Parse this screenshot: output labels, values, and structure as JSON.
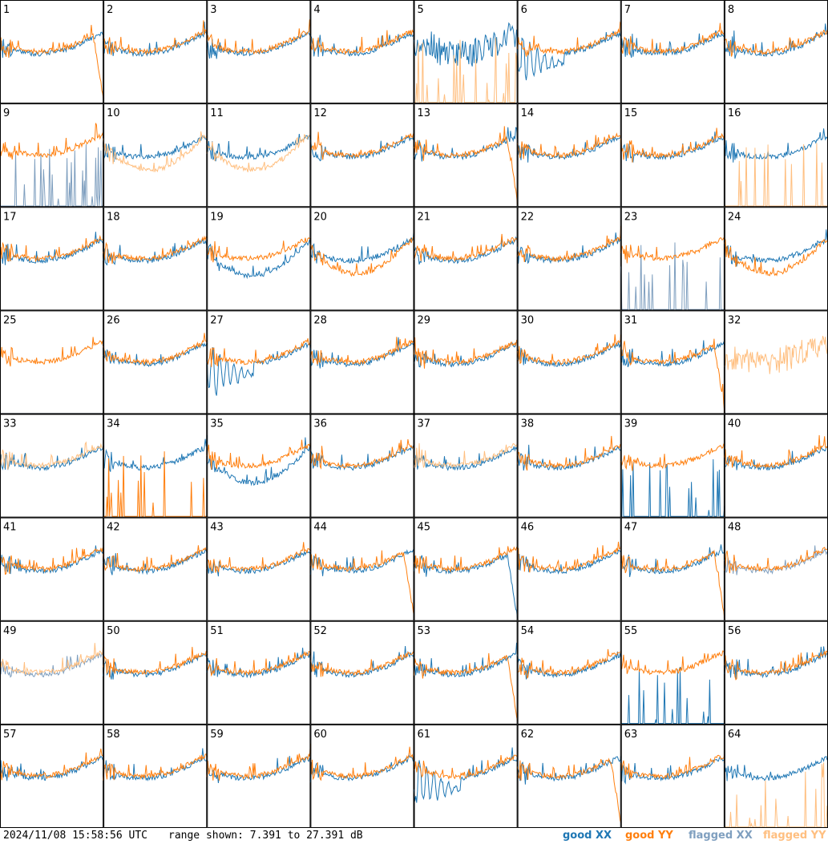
{
  "colors": {
    "good_xx": "#1f77b4",
    "good_yy": "#ff7f0e",
    "flagged_xx": "#7f9fbf",
    "flagged_yy": "#ffbf80",
    "border": "#000000"
  },
  "chart_data": {
    "type": "line",
    "layout": "small-multiples",
    "panel_count": 64,
    "grid": "8x8",
    "panel_labels": [
      "1",
      "2",
      "3",
      "4",
      "5",
      "6",
      "7",
      "8",
      "9",
      "10",
      "11",
      "12",
      "13",
      "14",
      "15",
      "16",
      "17",
      "18",
      "19",
      "20",
      "21",
      "22",
      "23",
      "24",
      "25",
      "26",
      "27",
      "28",
      "29",
      "30",
      "31",
      "32",
      "33",
      "34",
      "35",
      "36",
      "37",
      "38",
      "39",
      "40",
      "41",
      "42",
      "43",
      "44",
      "45",
      "46",
      "47",
      "48",
      "49",
      "50",
      "51",
      "52",
      "53",
      "54",
      "55",
      "56",
      "57",
      "58",
      "59",
      "60",
      "61",
      "62",
      "63",
      "64"
    ],
    "y_range_db": [
      7.391,
      27.391
    ],
    "series_names": [
      "good XX",
      "good YY",
      "flagged XX",
      "flagged YY"
    ],
    "panels": [
      {
        "id": 1,
        "xx": "good",
        "yy": "good",
        "shape": {
          "xx": "normal",
          "yy": "dropoff"
        }
      },
      {
        "id": 2,
        "xx": "good",
        "yy": "good",
        "shape": {
          "xx": "normal",
          "yy": "normal"
        }
      },
      {
        "id": 3,
        "xx": "good",
        "yy": "good",
        "shape": {
          "xx": "normal",
          "yy": "normal"
        }
      },
      {
        "id": 4,
        "xx": "good",
        "yy": "good",
        "shape": {
          "xx": "normal",
          "yy": "normal"
        }
      },
      {
        "id": 5,
        "xx": "good",
        "yy": "flagged",
        "shape": {
          "xx": "noisy",
          "yy": "spikes"
        }
      },
      {
        "id": 6,
        "xx": "good",
        "yy": "good",
        "shape": {
          "xx": "oscillating",
          "yy": "normal"
        }
      },
      {
        "id": 7,
        "xx": "good",
        "yy": "good",
        "shape": {
          "xx": "normal",
          "yy": "normal"
        }
      },
      {
        "id": 8,
        "xx": "good",
        "yy": "good",
        "shape": {
          "xx": "normal",
          "yy": "normal"
        }
      },
      {
        "id": 9,
        "xx": "flagged",
        "yy": "good",
        "shape": {
          "xx": "spikes",
          "yy": "normal"
        }
      },
      {
        "id": 10,
        "xx": "good",
        "yy": "flagged",
        "shape": {
          "xx": "normal",
          "yy": "low"
        }
      },
      {
        "id": 11,
        "xx": "good",
        "yy": "flagged",
        "shape": {
          "xx": "normal",
          "yy": "low"
        }
      },
      {
        "id": 12,
        "xx": "good",
        "yy": "good",
        "shape": {
          "xx": "normal",
          "yy": "normal"
        }
      },
      {
        "id": 13,
        "xx": "good",
        "yy": "good",
        "shape": {
          "xx": "normal",
          "yy": "dropoff"
        }
      },
      {
        "id": 14,
        "xx": "good",
        "yy": "good",
        "shape": {
          "xx": "normal",
          "yy": "normal"
        }
      },
      {
        "id": 15,
        "xx": "good",
        "yy": "good",
        "shape": {
          "xx": "normal",
          "yy": "normal"
        }
      },
      {
        "id": 16,
        "xx": "good",
        "yy": "flagged",
        "shape": {
          "xx": "normal",
          "yy": "spikes"
        }
      },
      {
        "id": 17,
        "xx": "good",
        "yy": "good",
        "shape": {
          "xx": "normal",
          "yy": "normal"
        }
      },
      {
        "id": 18,
        "xx": "good",
        "yy": "good",
        "shape": {
          "xx": "normal",
          "yy": "normal"
        }
      },
      {
        "id": 19,
        "xx": "good",
        "yy": "good",
        "shape": {
          "xx": "low",
          "yy": "normal"
        }
      },
      {
        "id": 20,
        "xx": "good",
        "yy": "good",
        "shape": {
          "xx": "normal",
          "yy": "low"
        }
      },
      {
        "id": 21,
        "xx": "good",
        "yy": "good",
        "shape": {
          "xx": "normal",
          "yy": "normal"
        }
      },
      {
        "id": 22,
        "xx": "good",
        "yy": "good",
        "shape": {
          "xx": "normal",
          "yy": "normal"
        }
      },
      {
        "id": 23,
        "xx": "flagged",
        "yy": "good",
        "shape": {
          "xx": "spikes",
          "yy": "normal"
        }
      },
      {
        "id": 24,
        "xx": "good",
        "yy": "good",
        "shape": {
          "xx": "normal",
          "yy": "low"
        }
      },
      {
        "id": 25,
        "xx": "flagged",
        "yy": "good",
        "shape": {
          "xx": "flat",
          "yy": "normal"
        }
      },
      {
        "id": 26,
        "xx": "good",
        "yy": "good",
        "shape": {
          "xx": "normal",
          "yy": "normal"
        }
      },
      {
        "id": 27,
        "xx": "good",
        "yy": "good",
        "shape": {
          "xx": "oscillating",
          "yy": "normal"
        }
      },
      {
        "id": 28,
        "xx": "good",
        "yy": "good",
        "shape": {
          "xx": "normal",
          "yy": "normal"
        }
      },
      {
        "id": 29,
        "xx": "good",
        "yy": "good",
        "shape": {
          "xx": "normal",
          "yy": "normal"
        }
      },
      {
        "id": 30,
        "xx": "good",
        "yy": "good",
        "shape": {
          "xx": "normal",
          "yy": "normal"
        }
      },
      {
        "id": 31,
        "xx": "good",
        "yy": "good",
        "shape": {
          "xx": "normal",
          "yy": "dropoff"
        }
      },
      {
        "id": 32,
        "xx": "flagged",
        "yy": "flagged",
        "shape": {
          "xx": "flat",
          "yy": "noisy"
        }
      },
      {
        "id": 33,
        "xx": "good",
        "yy": "flagged",
        "shape": {
          "xx": "normal",
          "yy": "normal"
        }
      },
      {
        "id": 34,
        "xx": "good",
        "yy": "good",
        "shape": {
          "xx": "normal",
          "yy": "spikes"
        }
      },
      {
        "id": 35,
        "xx": "good",
        "yy": "good",
        "shape": {
          "xx": "low",
          "yy": "normal"
        }
      },
      {
        "id": 36,
        "xx": "good",
        "yy": "good",
        "shape": {
          "xx": "normal",
          "yy": "normal"
        }
      },
      {
        "id": 37,
        "xx": "good",
        "yy": "flagged",
        "shape": {
          "xx": "normal",
          "yy": "normal"
        }
      },
      {
        "id": 38,
        "xx": "good",
        "yy": "good",
        "shape": {
          "xx": "normal",
          "yy": "normal"
        }
      },
      {
        "id": 39,
        "xx": "good",
        "yy": "good",
        "shape": {
          "xx": "spikes",
          "yy": "normal"
        }
      },
      {
        "id": 40,
        "xx": "good",
        "yy": "good",
        "shape": {
          "xx": "normal",
          "yy": "normal"
        }
      },
      {
        "id": 41,
        "xx": "good",
        "yy": "good",
        "shape": {
          "xx": "normal",
          "yy": "normal"
        }
      },
      {
        "id": 42,
        "xx": "good",
        "yy": "good",
        "shape": {
          "xx": "normal",
          "yy": "normal"
        }
      },
      {
        "id": 43,
        "xx": "good",
        "yy": "good",
        "shape": {
          "xx": "normal",
          "yy": "normal"
        }
      },
      {
        "id": 44,
        "xx": "good",
        "yy": "good",
        "shape": {
          "xx": "normal",
          "yy": "dropoff"
        }
      },
      {
        "id": 45,
        "xx": "good",
        "yy": "good",
        "shape": {
          "xx": "dropoff",
          "yy": "normal"
        }
      },
      {
        "id": 46,
        "xx": "good",
        "yy": "good",
        "shape": {
          "xx": "normal",
          "yy": "normal"
        }
      },
      {
        "id": 47,
        "xx": "good",
        "yy": "good",
        "shape": {
          "xx": "normal",
          "yy": "dropoff"
        }
      },
      {
        "id": 48,
        "xx": "flagged",
        "yy": "good",
        "shape": {
          "xx": "normal",
          "yy": "normal"
        }
      },
      {
        "id": 49,
        "xx": "flagged",
        "yy": "flagged",
        "shape": {
          "xx": "normal",
          "yy": "normal"
        }
      },
      {
        "id": 50,
        "xx": "good",
        "yy": "good",
        "shape": {
          "xx": "normal",
          "yy": "normal"
        }
      },
      {
        "id": 51,
        "xx": "good",
        "yy": "good",
        "shape": {
          "xx": "normal",
          "yy": "normal"
        }
      },
      {
        "id": 52,
        "xx": "good",
        "yy": "good",
        "shape": {
          "xx": "normal",
          "yy": "normal"
        }
      },
      {
        "id": 53,
        "xx": "good",
        "yy": "good",
        "shape": {
          "xx": "normal",
          "yy": "dropoff"
        }
      },
      {
        "id": 54,
        "xx": "good",
        "yy": "good",
        "shape": {
          "xx": "normal",
          "yy": "normal"
        }
      },
      {
        "id": 55,
        "xx": "good",
        "yy": "good",
        "shape": {
          "xx": "spikes",
          "yy": "normal"
        }
      },
      {
        "id": 56,
        "xx": "good",
        "yy": "good",
        "shape": {
          "xx": "normal",
          "yy": "normal"
        }
      },
      {
        "id": 57,
        "xx": "good",
        "yy": "good",
        "shape": {
          "xx": "normal",
          "yy": "normal"
        }
      },
      {
        "id": 58,
        "xx": "good",
        "yy": "good",
        "shape": {
          "xx": "normal",
          "yy": "normal"
        }
      },
      {
        "id": 59,
        "xx": "good",
        "yy": "good",
        "shape": {
          "xx": "normal",
          "yy": "normal"
        }
      },
      {
        "id": 60,
        "xx": "good",
        "yy": "good",
        "shape": {
          "xx": "normal",
          "yy": "normal"
        }
      },
      {
        "id": 61,
        "xx": "good",
        "yy": "good",
        "shape": {
          "xx": "oscillating",
          "yy": "normal"
        }
      },
      {
        "id": 62,
        "xx": "good",
        "yy": "good",
        "shape": {
          "xx": "normal",
          "yy": "dropoff"
        }
      },
      {
        "id": 63,
        "xx": "good",
        "yy": "good",
        "shape": {
          "xx": "normal",
          "yy": "normal"
        }
      },
      {
        "id": 64,
        "xx": "good",
        "yy": "flagged",
        "shape": {
          "xx": "normal",
          "yy": "spikes"
        }
      }
    ]
  },
  "footer": {
    "timestamp": "2024/11/08 15:58:56 UTC",
    "range_text": "range shown: 7.391 to 27.391 dB",
    "legend": {
      "good_xx": "good XX",
      "good_yy": "good YY",
      "flagged_xx": "flagged XX",
      "flagged_yy": "flagged YY"
    }
  }
}
